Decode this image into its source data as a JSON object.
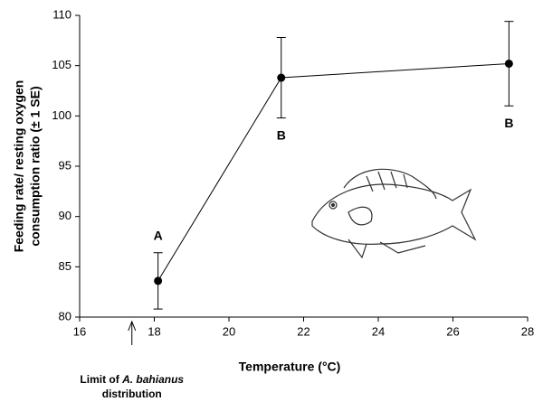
{
  "chart_data": {
    "type": "line",
    "x_label": "Temperature (°C)",
    "y_label_lines": [
      "Feeding rate/ resting oxygen",
      "consumption ratio (± 1 SE)"
    ],
    "x": [
      18.1,
      21.4,
      27.5
    ],
    "values": [
      83.6,
      103.8,
      105.2
    ],
    "errors": [
      2.8,
      4.0,
      4.2
    ],
    "point_labels": [
      "A",
      "B",
      "B"
    ],
    "color": "#000000",
    "xlim": [
      16,
      28
    ],
    "xticks": [
      16,
      18,
      20,
      22,
      24,
      26,
      28
    ],
    "ylim": [
      80,
      110
    ],
    "yticks": [
      80,
      85,
      90,
      95,
      100,
      105,
      110
    ],
    "grid": false,
    "limit_annotation": {
      "x": 17.4,
      "line1": [
        "Limit of ",
        "A. bahianus"
      ],
      "line2": "distribution"
    }
  }
}
